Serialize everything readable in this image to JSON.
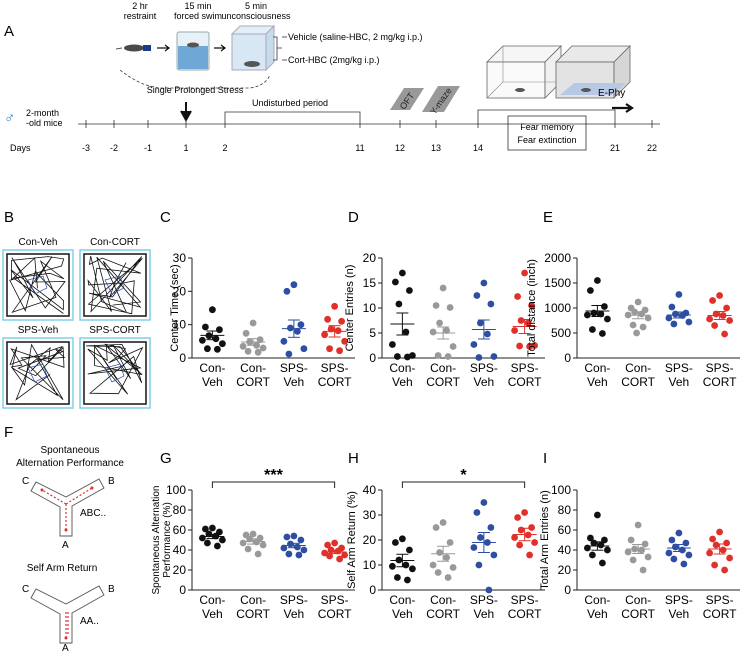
{
  "timeline": {
    "panel_label": "A",
    "steps": [
      {
        "top": "2 hr",
        "bottom": "restraint"
      },
      {
        "top": "15 min",
        "bottom": "forced swim"
      },
      {
        "top": "5 min",
        "bottom": "unconsciousness"
      }
    ],
    "treatments": [
      "Vehicle (saline-HBC, 2 mg/kg i.p.)",
      "Cort-HBC (2mg/kg i.p.)"
    ],
    "sps_label": "Single Prolonged Stress",
    "mice_line1": "2-month",
    "mice_line2": "-old mice",
    "male_symbol": "♂",
    "undisturbed": "Undisturbed period",
    "oft": "OFT",
    "ymaze": "Y-maze",
    "fear_line1": "Fear memory",
    "fear_line2": "Fear extinction",
    "ephy": "E-Phy",
    "days_label": "Days",
    "days": [
      "-3",
      "-2",
      "-1",
      "1",
      "2",
      "11",
      "12",
      "13",
      "14",
      "21",
      "22"
    ]
  },
  "panelB": {
    "label": "B",
    "groups": [
      "Con-Veh",
      "Con-CORT",
      "SPS-Veh",
      "SPS-CORT"
    ]
  },
  "panelF": {
    "label": "F",
    "title1": "Spontaneous",
    "title2": "Alternation Performance",
    "title3": "Self Arm Return",
    "arm_a": "A",
    "arm_b": "B",
    "arm_c": "C",
    "seq1": "ABC..",
    "seq2": "AA.."
  },
  "group_labels": [
    {
      "top": "Con-",
      "bottom": "Veh"
    },
    {
      "top": "Con-",
      "bottom": "CORT"
    },
    {
      "top": "SPS-",
      "bottom": "Veh"
    },
    {
      "top": "SPS-",
      "bottom": "CORT"
    }
  ],
  "colors": {
    "con_veh": "#111111",
    "con_cort": "#999999",
    "sps_veh": "#2e4ea3",
    "sps_cort": "#e0302a"
  },
  "chart_data": [
    {
      "label": "C",
      "type": "scatter",
      "ylabel": "Center Time (sec)",
      "ylim": [
        0,
        30
      ],
      "yticks": [
        0,
        10,
        20,
        30
      ],
      "means": [
        6.8,
        4.8,
        8.8,
        8.0
      ],
      "sems": [
        1.3,
        1.0,
        2.6,
        1.7
      ],
      "points": [
        [
          14.5,
          9.3,
          8.5,
          6.7,
          5.8,
          5.3,
          4.3,
          2.8,
          2.6
        ],
        [
          10.5,
          7.4,
          5.5,
          4.8,
          3.8,
          3.5,
          3.0,
          2.0,
          1.7
        ],
        [
          22.0,
          20.0,
          10.0,
          9.0,
          8.0,
          5.0,
          2.8,
          1.2
        ],
        [
          15.5,
          11.6,
          11.0,
          8.7,
          8.2,
          7.0,
          5.0,
          2.8,
          2.2
        ]
      ]
    },
    {
      "label": "D",
      "type": "scatter",
      "ylabel": "Center Entries (n)",
      "ylim": [
        0,
        20
      ],
      "yticks": [
        0,
        5,
        10,
        15,
        20
      ],
      "means": [
        6.8,
        5.0,
        5.7,
        6.3
      ],
      "sems": [
        2.2,
        1.2,
        1.9,
        1.4
      ],
      "points": [
        [
          17,
          15.2,
          13.5,
          10.8,
          5.2,
          2.7,
          0.5,
          0.3,
          0.2
        ],
        [
          14,
          10.5,
          10.1,
          7.0,
          5.5,
          5.2,
          2.3,
          0.5,
          0.3
        ],
        [
          15,
          12.5,
          10.8,
          7.0,
          4.8,
          2.7,
          0.3,
          0.1
        ],
        [
          17,
          12.3,
          10.5,
          7.5,
          7.0,
          5.5,
          2.5,
          2.4,
          2.3
        ]
      ]
    },
    {
      "label": "E",
      "type": "scatter",
      "ylabel": "Total distance (inch)",
      "ylim": [
        0,
        2000
      ],
      "yticks": [
        0,
        500,
        1000,
        1500,
        2000
      ],
      "means": [
        940,
        855,
        860,
        850
      ],
      "sems": [
        110,
        70,
        60,
        80
      ],
      "points": [
        [
          1550,
          1350,
          1030,
          900,
          880,
          860,
          780,
          570,
          490
        ],
        [
          1120,
          1000,
          960,
          920,
          880,
          860,
          800,
          660,
          620,
          500
        ],
        [
          1270,
          1020,
          900,
          880,
          850,
          800,
          720,
          680
        ],
        [
          1250,
          1150,
          1000,
          880,
          850,
          780,
          750,
          650,
          480
        ]
      ]
    },
    {
      "label": "G",
      "type": "scatter",
      "ylabel": "Spontaneous Alternation Performance (%)",
      "ylim": [
        0,
        100
      ],
      "yticks": [
        0,
        20,
        40,
        60,
        80,
        100
      ],
      "means": [
        53.5,
        48.5,
        44.5,
        38.0
      ],
      "sems": [
        2.1,
        2.6,
        2.2,
        1.6
      ],
      "points": [
        [
          62,
          61,
          58,
          56,
          54,
          52,
          50,
          47,
          44
        ],
        [
          56,
          55,
          52,
          51,
          48,
          47,
          45,
          41,
          36
        ],
        [
          54,
          53,
          50,
          46,
          43,
          42,
          40,
          36,
          35
        ],
        [
          47,
          45,
          42,
          40,
          39,
          37,
          35,
          34,
          31
        ]
      ],
      "annotation": "***"
    },
    {
      "label": "H",
      "type": "scatter",
      "ylabel": "Self Arm Return (%)",
      "ylim": [
        0,
        40
      ],
      "yticks": [
        0,
        10,
        20,
        30,
        40
      ],
      "means": [
        11.8,
        14.5,
        19.0,
        22.2
      ],
      "sems": [
        2.5,
        3.0,
        4.0,
        2.5
      ],
      "points": [
        [
          20.5,
          19,
          16,
          12,
          10,
          9.5,
          8.5,
          5,
          4
        ],
        [
          27,
          25,
          19,
          15,
          13,
          10,
          9,
          7,
          5
        ],
        [
          35,
          31,
          25,
          21,
          19,
          17,
          14,
          10,
          0
        ],
        [
          31,
          29,
          25,
          24,
          22,
          21,
          19,
          18,
          14
        ]
      ],
      "annotation": "*"
    },
    {
      "label": "I",
      "type": "scatter",
      "ylabel": "Total Arm Entries (n)",
      "ylim": [
        0,
        100
      ],
      "yticks": [
        0,
        20,
        40,
        60,
        80,
        100
      ],
      "means": [
        44,
        41,
        42,
        41
      ],
      "sems": [
        4.2,
        4.5,
        3.5,
        5.0
      ],
      "points": [
        [
          75,
          52,
          50,
          47,
          45,
          42,
          40,
          35,
          27
        ],
        [
          65,
          50,
          46,
          41,
          40,
          38,
          33,
          30,
          20
        ],
        [
          57,
          50,
          47,
          43,
          40,
          37,
          35,
          31,
          26
        ],
        [
          58,
          51,
          47,
          45,
          40,
          37,
          32,
          25,
          20
        ]
      ]
    }
  ]
}
